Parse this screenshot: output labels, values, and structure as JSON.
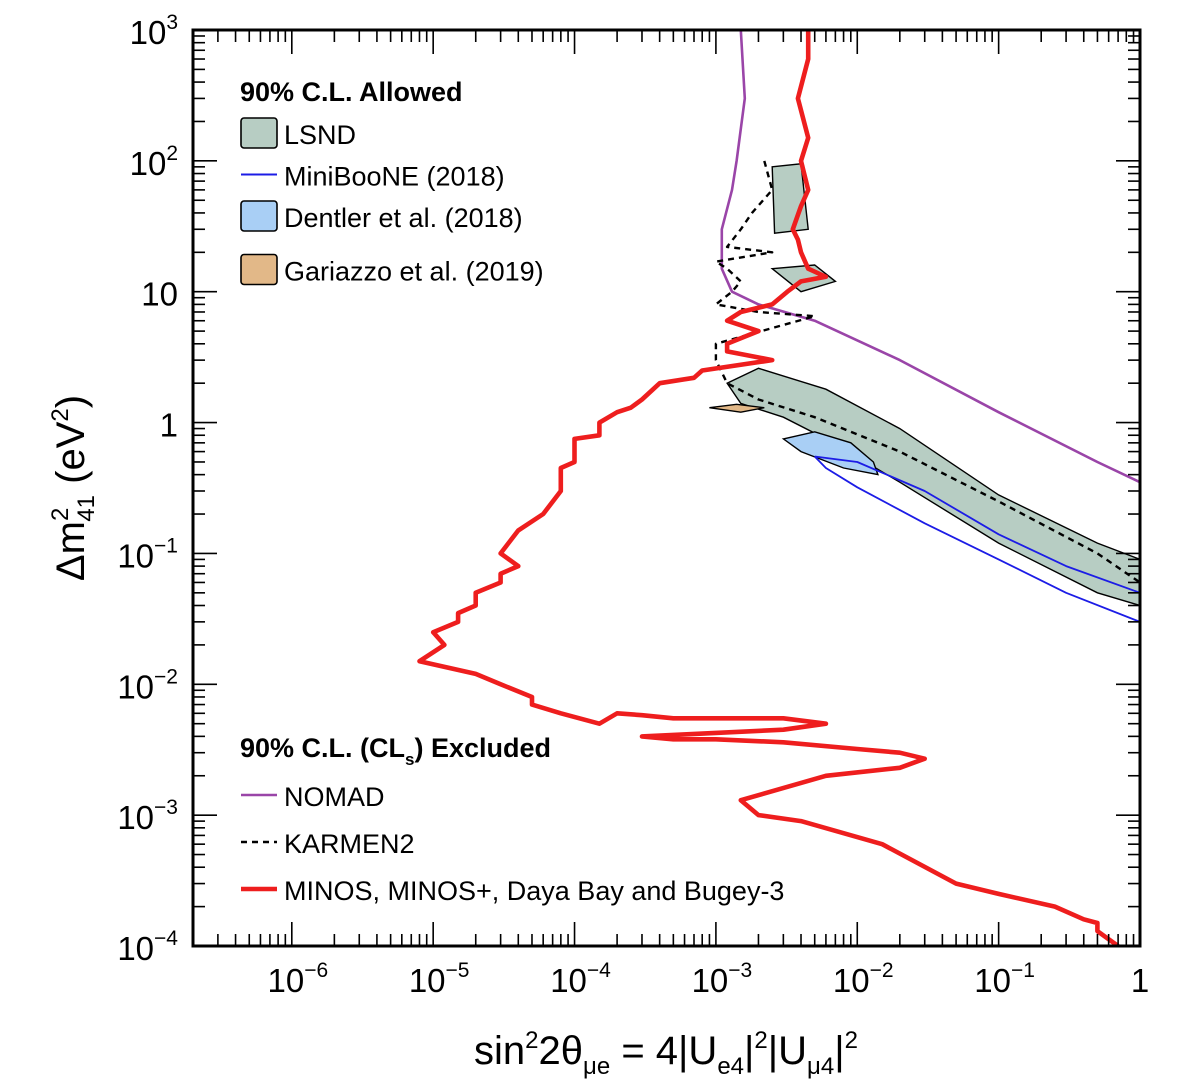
{
  "chart_data": {
    "type": "line",
    "x_scale": "log",
    "y_scale": "log",
    "xlim": [
      2e-07,
      1
    ],
    "ylim": [
      0.0001,
      1000
    ],
    "xlabel": {
      "base": "sin",
      "sup1": "2",
      "mid": "2θ",
      "sub1": "μe",
      "eq": " = 4|U",
      "sub2": "e4",
      "sup2": "2",
      "bar": "|U",
      "sub3": "μ4",
      "sup3": "2",
      "tail": "|"
    },
    "ylabel": {
      "delta": "Δm",
      "sup": "2",
      "sub": "41",
      "unit_open": " (eV",
      "unit_sup": "2",
      "unit_close": ")"
    },
    "x_ticks": [
      {
        "value": 1e-06,
        "base": "10",
        "exp": "−6"
      },
      {
        "value": 1e-05,
        "base": "10",
        "exp": "−5"
      },
      {
        "value": 0.0001,
        "base": "10",
        "exp": "−4"
      },
      {
        "value": 0.001,
        "base": "10",
        "exp": "−3"
      },
      {
        "value": 0.01,
        "base": "10",
        "exp": "−2"
      },
      {
        "value": 0.1,
        "base": "10",
        "exp": "−1"
      },
      {
        "value": 1,
        "base": "1",
        "exp": ""
      }
    ],
    "y_ticks": [
      {
        "value": 0.0001,
        "base": "10",
        "exp": "−4"
      },
      {
        "value": 0.001,
        "base": "10",
        "exp": "−3"
      },
      {
        "value": 0.01,
        "base": "10",
        "exp": "−2"
      },
      {
        "value": 0.1,
        "base": "10",
        "exp": "−1"
      },
      {
        "value": 1,
        "base": "1",
        "exp": ""
      },
      {
        "value": 10,
        "base": "10",
        "exp": ""
      },
      {
        "value": 100,
        "base": "10",
        "exp": "2"
      },
      {
        "value": 1000,
        "base": "10",
        "exp": "3"
      }
    ],
    "legend_allowed_title": "90% C.L. Allowed",
    "legend_excluded_title_pre": "90% C.L. (CL",
    "legend_excluded_title_sub": "s",
    "legend_excluded_title_post": ") Excluded",
    "regions": [
      {
        "name": "LSND",
        "fill": "#b7cdc3",
        "stroke": "#000000",
        "x": [
          0.0012,
          0.002,
          0.006,
          0.02,
          0.1,
          0.5,
          1,
          1,
          0.5,
          0.1,
          0.02,
          0.006,
          0.003,
          0.0015,
          0.0012
        ],
        "y": [
          2,
          2.6,
          1.8,
          0.9,
          0.28,
          0.12,
          0.09,
          0.04,
          0.05,
          0.12,
          0.35,
          0.75,
          1.1,
          1.4,
          2
        ]
      },
      {
        "name": "LSND",
        "fill": "#b7cdc3",
        "stroke": "#000000",
        "x": [
          0.0025,
          0.005,
          0.007,
          0.004,
          0.0025
        ],
        "y": [
          15,
          16,
          12,
          10,
          15
        ]
      },
      {
        "name": "LSND",
        "fill": "#b7cdc3",
        "stroke": "#000000",
        "x": [
          0.0025,
          0.004,
          0.0045,
          0.0026,
          0.0025
        ],
        "y": [
          90,
          95,
          30,
          28,
          90
        ]
      },
      {
        "name": "Dentler et al. (2018)",
        "fill": "#a9cff5",
        "stroke": "#000000",
        "x": [
          0.003,
          0.005,
          0.009,
          0.013,
          0.014,
          0.008,
          0.004,
          0.003
        ],
        "y": [
          0.75,
          0.85,
          0.7,
          0.5,
          0.4,
          0.45,
          0.6,
          0.75
        ]
      },
      {
        "name": "Gariazzo et al. (2019)",
        "fill": "#e2b888",
        "stroke": "#000000",
        "x": [
          0.0009,
          0.0014,
          0.0022,
          0.0015,
          0.0009
        ],
        "y": [
          1.3,
          1.38,
          1.3,
          1.2,
          1.3
        ]
      }
    ],
    "series": [
      {
        "name": "MiniBooNE (2018)",
        "color": "#1c1ce6",
        "width": 1.8,
        "dash": "",
        "x": [
          0.005,
          0.01,
          0.03,
          0.1,
          0.3,
          1,
          1,
          0.3,
          0.1,
          0.03,
          0.01,
          0.006,
          0.005
        ],
        "y": [
          0.55,
          0.5,
          0.3,
          0.14,
          0.08,
          0.05,
          0.03,
          0.05,
          0.09,
          0.17,
          0.32,
          0.45,
          0.55
        ]
      },
      {
        "name": "NOMAD",
        "color": "#9a45a8",
        "width": 2.6,
        "dash": "",
        "x": [
          0.0015,
          0.0016,
          0.0014,
          0.0013,
          0.0011,
          0.0011,
          0.0013,
          0.002,
          0.005,
          0.02,
          0.1,
          0.5,
          1
        ],
        "y": [
          1000,
          300,
          100,
          60,
          30,
          15,
          10,
          8,
          6,
          3,
          1.2,
          0.5,
          0.35
        ]
      },
      {
        "name": "KARMEN2",
        "color": "#000000",
        "width": 2.4,
        "dash": "6 5",
        "x": [
          0.0022,
          0.0025,
          0.0018,
          0.0015,
          0.0012,
          0.0025,
          0.001,
          0.0012,
          0.0015,
          0.0013,
          0.001,
          0.002,
          0.005,
          0.001,
          0.001,
          0.0012,
          0.002,
          0.005,
          0.02,
          0.1,
          0.5,
          1
        ],
        "y": [
          100,
          60,
          40,
          30,
          22,
          20,
          17,
          15,
          12,
          10,
          8,
          7,
          6.5,
          4,
          3,
          2,
          1.5,
          1.1,
          0.6,
          0.25,
          0.1,
          0.06
        ]
      },
      {
        "name": "MINOS, MINOS+, Daya Bay and Bugey-3",
        "color": "#ee1e1e",
        "width": 4.6,
        "dash": "",
        "x": [
          0.0045,
          0.0045,
          0.0038,
          0.0045,
          0.004,
          0.0045,
          0.004,
          0.0035,
          0.0038,
          0.004,
          0.0045,
          0.006,
          0.004,
          0.0032,
          0.0025,
          0.0015,
          0.0012,
          0.002,
          0.0012,
          0.0012,
          0.0025,
          0.0008,
          0.0007,
          0.0004,
          0.0003,
          0.00025,
          0.0002,
          0.00015,
          0.00015,
          0.0001,
          0.0001,
          8e-05,
          8e-05,
          6e-05,
          4e-05,
          3e-05,
          4e-05,
          3e-05,
          3e-05,
          2e-05,
          2e-05,
          1.5e-05,
          1.5e-05,
          1e-05,
          1.2e-05,
          8e-06,
          2e-05,
          3e-05,
          5e-05,
          5e-05,
          8e-05,
          0.00015,
          0.0002,
          0.0003,
          0.0005,
          0.001,
          0.003,
          0.006,
          0.003,
          0.0003,
          0.0005,
          0.001,
          0.003,
          0.01,
          0.02,
          0.03,
          0.02,
          0.006,
          0.0015,
          0.002,
          0.004,
          0.015,
          0.05,
          0.1,
          0.25,
          0.4,
          0.5,
          0.5,
          0.7
        ],
        "y": [
          1000,
          600,
          300,
          150,
          100,
          60,
          45,
          30,
          25,
          20,
          15,
          13,
          12,
          10,
          8,
          7,
          6,
          5,
          4,
          3.5,
          3,
          2.5,
          2.2,
          2,
          1.5,
          1.3,
          1.2,
          1,
          0.8,
          0.75,
          0.5,
          0.45,
          0.3,
          0.2,
          0.15,
          0.1,
          0.08,
          0.07,
          0.06,
          0.05,
          0.04,
          0.035,
          0.03,
          0.025,
          0.02,
          0.015,
          0.012,
          0.01,
          0.008,
          0.007,
          0.006,
          0.005,
          0.006,
          0.0058,
          0.0055,
          0.0055,
          0.0055,
          0.005,
          0.0045,
          0.004,
          0.0038,
          0.0038,
          0.0036,
          0.0032,
          0.003,
          0.0027,
          0.0023,
          0.002,
          0.0013,
          0.001,
          0.0009,
          0.0006,
          0.0003,
          0.00025,
          0.0002,
          0.00016,
          0.00015,
          0.00013,
          0.0001
        ]
      }
    ],
    "legend_allowed": [
      {
        "label": "LSND",
        "kind": "box",
        "color": "#b7cdc3"
      },
      {
        "label": "MiniBooNE (2018)",
        "kind": "line",
        "color": "#1c1ce6",
        "width": 2,
        "dash": ""
      },
      {
        "label": "Dentler et al. (2018)",
        "kind": "box",
        "color": "#a9cff5"
      },
      {
        "label": "Gariazzo et al. (2019)",
        "kind": "box",
        "color": "#e2b888"
      }
    ],
    "legend_excluded": [
      {
        "label": "NOMAD",
        "kind": "line",
        "color": "#9a45a8",
        "width": 2.6,
        "dash": ""
      },
      {
        "label": "KARMEN2",
        "kind": "line",
        "color": "#000000",
        "width": 2.6,
        "dash": "6 5"
      },
      {
        "label": "MINOS, MINOS+, Daya Bay and Bugey-3",
        "kind": "line",
        "color": "#ee1e1e",
        "width": 4.6,
        "dash": ""
      }
    ]
  }
}
